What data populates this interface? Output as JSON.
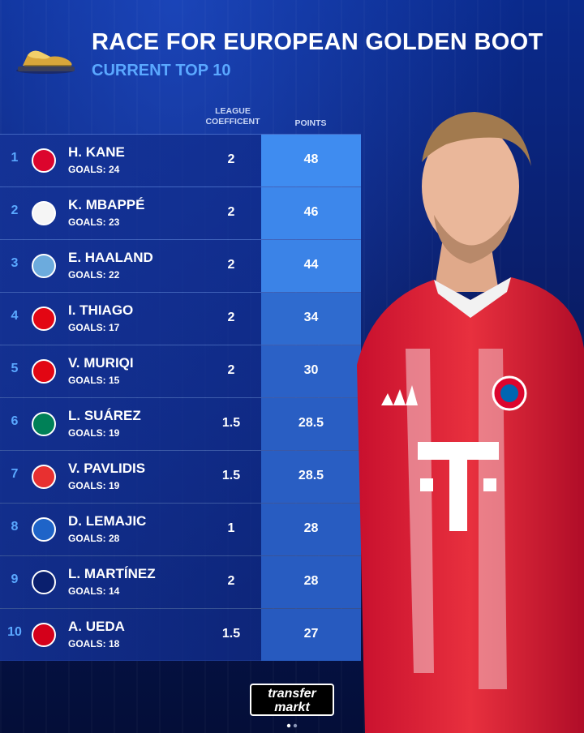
{
  "header": {
    "title": "RACE FOR EUROPEAN GOLDEN BOOT",
    "subtitle": "CURRENT TOP 10"
  },
  "columns": {
    "coefficient": "LEAGUE COEFFICENT",
    "points": "POINTS"
  },
  "rows": [
    {
      "rank": "1",
      "name": "H. KANE",
      "goals": "GOALS: 24",
      "coef": "2",
      "points": "48",
      "points_share": 1.0,
      "club_icon": "bayern-badge-icon",
      "club_color": "#dc052d"
    },
    {
      "rank": "2",
      "name": "K. MBAPPÉ",
      "goals": "GOALS: 23",
      "coef": "2",
      "points": "46",
      "points_share": 0.958,
      "club_icon": "real-madrid-badge-icon",
      "club_color": "#f5f5f5"
    },
    {
      "rank": "3",
      "name": "E. HAALAND",
      "goals": "GOALS: 22",
      "coef": "2",
      "points": "44",
      "points_share": 0.917,
      "club_icon": "man-city-badge-icon",
      "club_color": "#6cabdd"
    },
    {
      "rank": "4",
      "name": "I. THIAGO",
      "goals": "GOALS: 17",
      "coef": "2",
      "points": "34",
      "points_share": 0.708,
      "club_icon": "brentford-badge-icon",
      "club_color": "#e30613"
    },
    {
      "rank": "5",
      "name": "V. MURIQI",
      "goals": "GOALS: 15",
      "coef": "2",
      "points": "30",
      "points_share": 0.625,
      "club_icon": "mallorca-badge-icon",
      "club_color": "#e20613"
    },
    {
      "rank": "6",
      "name": "L. SUÁREZ",
      "goals": "GOALS: 19",
      "coef": "1.5",
      "points": "28.5",
      "points_share": 0.594,
      "club_icon": "sporting-badge-icon",
      "club_color": "#008057"
    },
    {
      "rank": "7",
      "name": "V. PAVLIDIS",
      "goals": "GOALS: 19",
      "coef": "1.5",
      "points": "28.5",
      "points_share": 0.594,
      "club_icon": "benfica-badge-icon",
      "club_color": "#e83030"
    },
    {
      "rank": "8",
      "name": "D. LEMAJIC",
      "goals": "GOALS: 28",
      "coef": "1",
      "points": "28",
      "points_share": 0.583,
      "club_icon": "riga-badge-icon",
      "club_color": "#1e64c8"
    },
    {
      "rank": "9",
      "name": "L. MARTÍNEZ",
      "goals": "GOALS: 14",
      "coef": "2",
      "points": "28",
      "points_share": 0.583,
      "club_icon": "inter-badge-icon",
      "club_color": "#0a1f6e"
    },
    {
      "rank": "10",
      "name": "A. UEDA",
      "goals": "GOALS: 18",
      "coef": "1.5",
      "points": "27",
      "points_share": 0.563,
      "club_icon": "feyenoord-badge-icon",
      "club_color": "#d4001a"
    }
  ],
  "branding": {
    "logo_line1": "transfer",
    "logo_line2": "markt"
  },
  "colors": {
    "accent": "#5aa8ff",
    "points_high": "#3f8cf0",
    "points_low": "#2453b8"
  }
}
